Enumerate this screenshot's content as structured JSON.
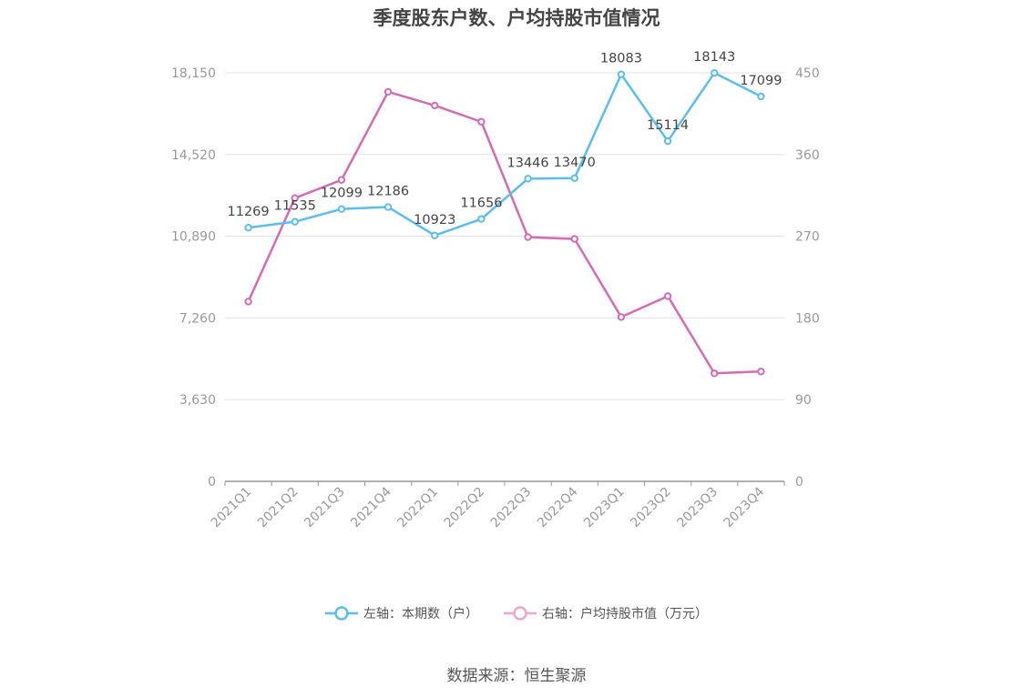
{
  "title": "季度股东户数、户均持股市值情况",
  "source": "数据来源：恒生聚源",
  "colors": {
    "left_series": "#5bbdf0",
    "right_series": "#d46bb5",
    "grid": "#e3e6f0",
    "axis": "#999999"
  },
  "legend": [
    {
      "label": "左轴：本期数（户）",
      "color": "#5bbdf0"
    },
    {
      "label": "右轴：户均持股市值（万元）",
      "color": "#e9a7cf"
    }
  ],
  "chart_data": {
    "type": "line",
    "title": "季度股东户数、户均持股市值情况",
    "categories": [
      "2021Q1",
      "2021Q2",
      "2021Q3",
      "2021Q4",
      "2022Q1",
      "2022Q2",
      "2022Q3",
      "2022Q4",
      "2023Q1",
      "2023Q2",
      "2023Q3",
      "2023Q4"
    ],
    "left_axis": {
      "ticks": [
        "0",
        "3,630",
        "7,260",
        "10,890",
        "14,520",
        "18,150"
      ],
      "ylim": [
        0,
        18150
      ]
    },
    "right_axis": {
      "ticks": [
        "0",
        "90",
        "180",
        "270",
        "360",
        "450"
      ],
      "ylim": [
        0,
        450
      ]
    },
    "grid": true,
    "legend_position": "bottom",
    "series": [
      {
        "name": "左轴：本期数（户）",
        "axis": "left",
        "values": [
          11269,
          11535,
          12099,
          12186,
          10923,
          11656,
          13446,
          13470,
          18083,
          15114,
          18143,
          17099
        ],
        "labels": [
          "11269",
          "11535",
          "12099",
          "12186",
          "10923",
          "11656",
          "13446",
          "13470",
          "18083",
          "15114",
          "18143",
          "17099"
        ]
      },
      {
        "name": "右轴：户均持股市值（万元）",
        "axis": "right",
        "values": [
          198,
          312,
          332,
          429,
          414,
          396,
          269,
          267,
          181,
          204,
          119,
          121
        ]
      }
    ]
  }
}
